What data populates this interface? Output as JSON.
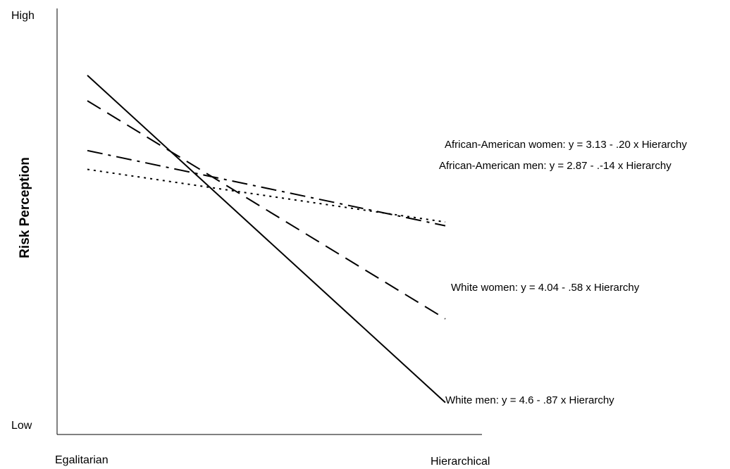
{
  "chart_data": {
    "type": "line",
    "xlabel": "",
    "ylabel": "Risk Perception",
    "x_ticks": [
      "Egalitarian",
      "Hierarchical"
    ],
    "y_ticks": [
      "Low",
      "High"
    ],
    "x": [
      1,
      5
    ],
    "grid": false,
    "legend": "none",
    "series": [
      {
        "name": "African-American women",
        "label": "African-American women: y = 3.13 - .20 x Hierarchy",
        "intercept": 3.13,
        "slope": -0.2,
        "dash": "dash-dot",
        "color": "#000000"
      },
      {
        "name": "African-American men",
        "label": "African-American men: y = 2.87 - .-14 x Hierarchy",
        "intercept": 2.87,
        "slope": -0.14,
        "dash": "dot",
        "color": "#000000"
      },
      {
        "name": "White women",
        "label": "White women: y = 4.04 - .58 x Hierarchy",
        "intercept": 4.04,
        "slope": -0.58,
        "dash": "dash",
        "color": "#000000"
      },
      {
        "name": "White men",
        "label": "White men: y = 4.6 - .87 x Hierarchy",
        "intercept": 4.6,
        "slope": -0.87,
        "dash": "solid",
        "color": "#000000"
      }
    ]
  }
}
